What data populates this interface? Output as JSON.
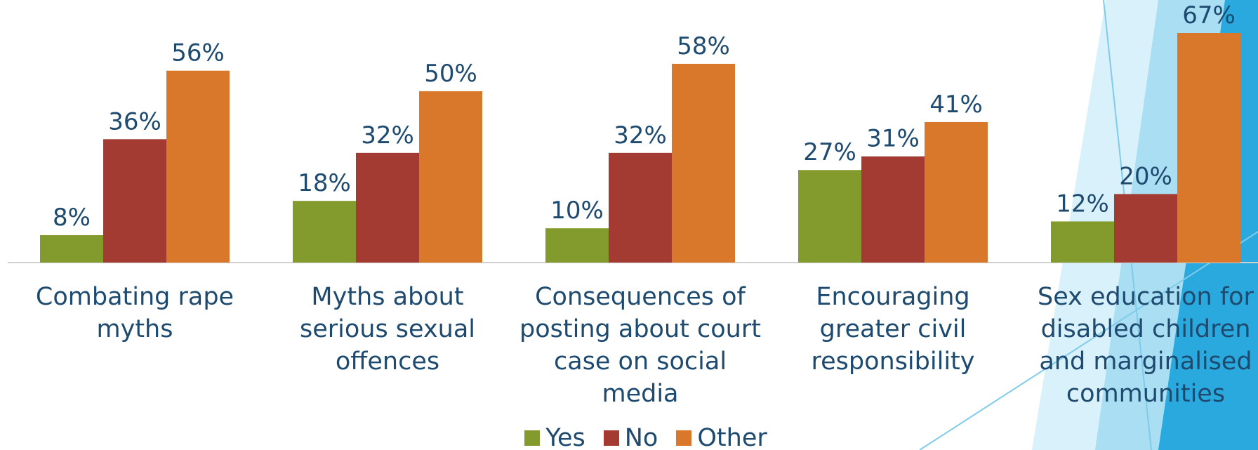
{
  "chart_data": {
    "type": "bar",
    "categories": [
      "Combating rape myths",
      "Myths about serious sexual offences",
      "Consequences of posting about court case on social media",
      "Encouraging greater civil responsibility",
      "Sex education for disabled children and marginalised communities"
    ],
    "series": [
      {
        "name": "Yes",
        "color": "#839a2d",
        "values": [
          8,
          18,
          10,
          27,
          12
        ],
        "value_labels": [
          "8%",
          "18%",
          "10%",
          "27%",
          "12%"
        ]
      },
      {
        "name": "No",
        "color": "#a33b32",
        "values": [
          36,
          32,
          32,
          31,
          20
        ],
        "value_labels": [
          "36%",
          "32%",
          "32%",
          "31%",
          "20%"
        ]
      },
      {
        "name": "Other",
        "color": "#d9772b",
        "values": [
          56,
          50,
          58,
          41,
          67
        ],
        "value_labels": [
          "56%",
          "50%",
          "58%",
          "41%",
          "67%"
        ]
      }
    ]
  }
}
